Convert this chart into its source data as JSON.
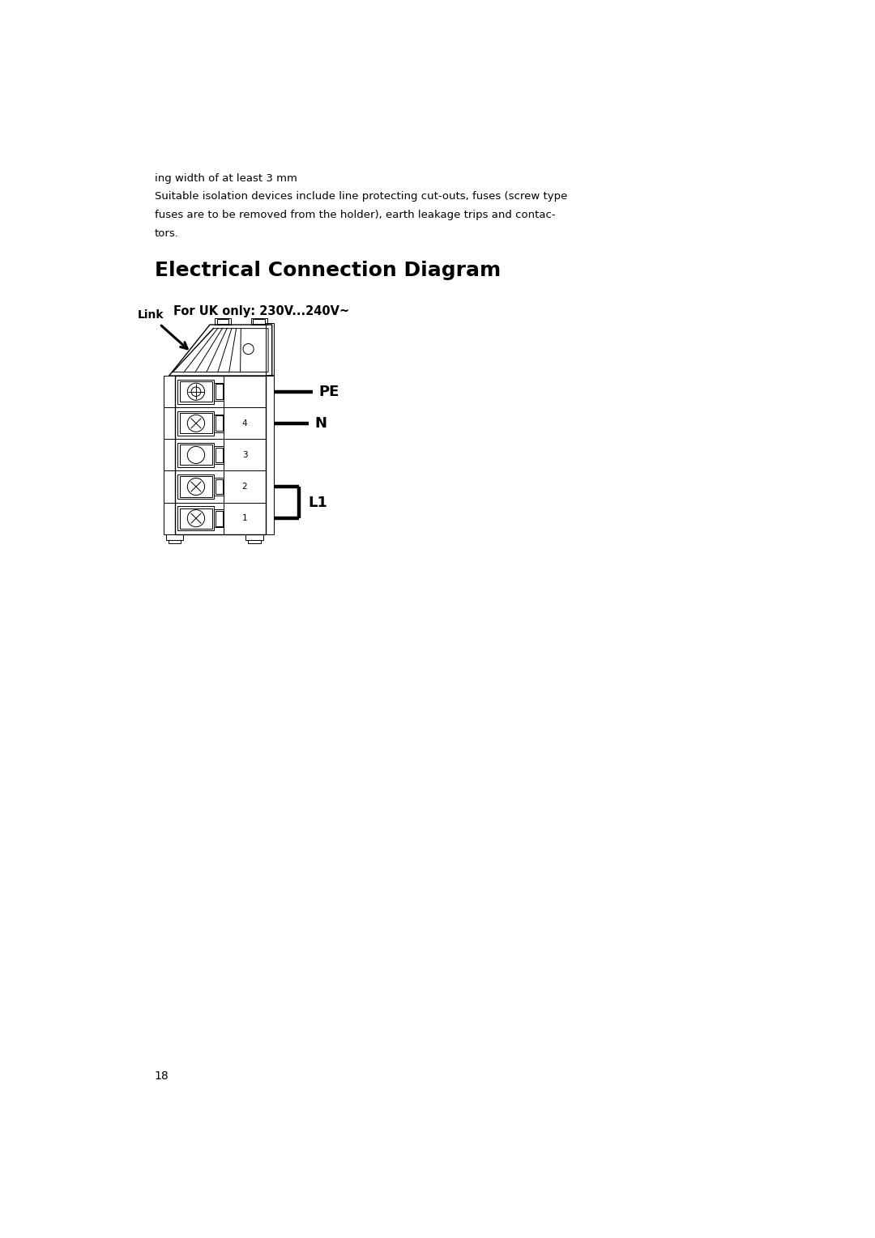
{
  "bg_color": "#ffffff",
  "page_width": 10.8,
  "page_height": 15.29,
  "text_color": "#000000",
  "intro_text_line1": "ing width of at least 3 mm",
  "intro_text_line2": "Suitable isolation devices include line protecting cut-outs, fuses (screw type",
  "intro_text_line3": "fuses are to be removed from the holder), earth leakage trips and contac-",
  "intro_text_line4": "tors.",
  "section_title": "Electrical Connection Diagram",
  "subtitle": "For UK only: 230V...240V~",
  "label_link": "Link",
  "label_PE": "PE",
  "label_N": "N",
  "label_L1": "L1",
  "page_number": "18",
  "intro_fontsize": 9.5,
  "title_fontsize": 18,
  "subtitle_fontsize": 10.5,
  "label_fontsize": 13,
  "link_fontsize": 10,
  "pagenum_fontsize": 10
}
